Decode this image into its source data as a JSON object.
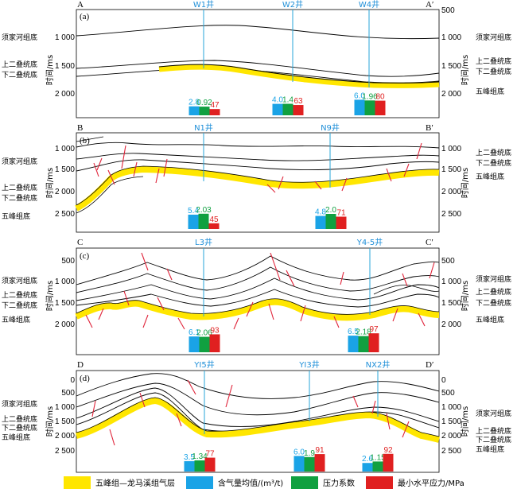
{
  "colors": {
    "gas_layer": "#ffe600",
    "gas_content": "#1aa3e6",
    "pressure": "#10a040",
    "stress": "#e02020",
    "fault": "#e0243a",
    "well": "#27a6d8",
    "horizon": "#000000"
  },
  "panels": [
    {
      "id": "(a)",
      "corners": [
        "A",
        "A′"
      ],
      "axis_title": "时间/ms",
      "ticks_left": [
        "1 000",
        "1 500",
        "2 000"
      ],
      "ticks_right": [
        "500",
        "1 000",
        "1 500",
        "2 000"
      ],
      "left_labels": [
        "须家河组底",
        "上二叠统底",
        "下二叠统底"
      ],
      "right_labels": [
        "须家河组底",
        "上二叠统底",
        "下二叠统底",
        "五峰组底"
      ],
      "wells": [
        "W1井",
        "W2井",
        "W4井"
      ],
      "bars": [
        {
          "gas": "2.8",
          "pressure": "0.92",
          "stress": "47"
        },
        {
          "gas": "4.0",
          "pressure": "1.4",
          "stress": "63"
        },
        {
          "gas": "6.0",
          "pressure": "1.96",
          "stress": "80"
        }
      ]
    },
    {
      "id": "(b)",
      "corners": [
        "B",
        "B′"
      ],
      "axis_title": "时间/ms",
      "ticks_left": [
        "1 000",
        "1 500",
        "2 000",
        "2 500"
      ],
      "ticks_right": [
        "1 000",
        "1 500",
        "2 000",
        "2 500"
      ],
      "left_labels": [
        "须家河组底",
        "上二叠统底",
        "下二叠统底",
        "五峰组底"
      ],
      "right_labels": [
        "上二叠统底",
        "下二叠统底",
        "五峰组底"
      ],
      "wells": [
        "N1井",
        "N9井"
      ],
      "bars": [
        {
          "gas": "5.4",
          "pressure": "2.03",
          "stress": "45"
        },
        {
          "gas": "4.8",
          "pressure": "2.0",
          "stress": "71"
        }
      ]
    },
    {
      "id": "(c)",
      "corners": [
        "C",
        "C′"
      ],
      "axis_title": "时间/ms",
      "ticks_left": [
        "500",
        "1 000",
        "1 500",
        "2 000"
      ],
      "ticks_right": [
        "500",
        "1 000",
        "1 500",
        "2 000"
      ],
      "left_labels": [
        "须家河组底",
        "上二叠统底",
        "下二叠统底",
        "五峰组底"
      ],
      "right_labels": [
        "须家河组底",
        "上二叠统底",
        "下二叠统底",
        "五峰组底"
      ],
      "wells": [
        "L3井",
        "Y4-5井"
      ],
      "bars": [
        {
          "gas": "6.1",
          "pressure": "2.06",
          "stress": "93"
        },
        {
          "gas": "6.5",
          "pressure": "2.18",
          "stress": "97"
        }
      ]
    },
    {
      "id": "(d)",
      "corners": [
        "D",
        "D′"
      ],
      "axis_title": "时间/ms",
      "ticks_left": [
        "0",
        "500",
        "1 000",
        "1 500",
        "2 000",
        "2 500"
      ],
      "ticks_right": [
        "0",
        "500",
        "1 000",
        "1 500",
        "2 000",
        "2 500"
      ],
      "left_labels": [
        "须家河组底",
        "上二叠统底",
        "下二叠统底",
        "五峰组底"
      ],
      "right_labels": [
        "须家河组底",
        "上二叠统底",
        "下二叠统底",
        "五峰组底"
      ],
      "wells": [
        "YI5井",
        "YI3井",
        "NX2井"
      ],
      "bars": [
        {
          "gas": "3.5",
          "pressure": "1.34",
          "stress": "77"
        },
        {
          "gas": "6.0",
          "pressure": "1.9",
          "stress": "91"
        },
        {
          "gas": "2.6",
          "pressure": "1.15",
          "stress": "92"
        }
      ]
    }
  ],
  "legend": [
    {
      "key": "gas_layer",
      "label": "五峰组—龙马溪组气层"
    },
    {
      "key": "gas_content",
      "label": "含气量均值/(m³/t)"
    },
    {
      "key": "pressure",
      "label": "压力系数"
    },
    {
      "key": "stress",
      "label": "最小水平应力/MPa"
    }
  ]
}
